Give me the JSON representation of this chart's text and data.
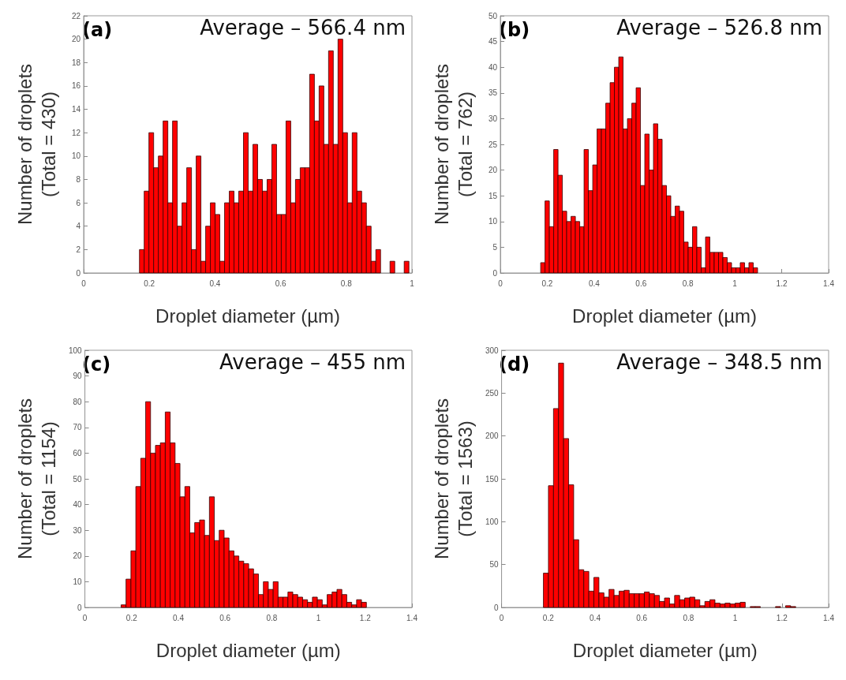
{
  "chart_data": [
    {
      "type": "histogram",
      "title": "(a)",
      "annotations": [
        "Average – 566.4 nm"
      ],
      "xlabel": "Droplet diameter (µm)",
      "ylabel": "Number of droplets\n(Total = 430)",
      "color": "#ff0000",
      "xlim": [
        0,
        1
      ],
      "xticks": [
        0,
        0.2,
        0.4,
        0.6,
        0.8,
        1
      ],
      "ylim": [
        0,
        22
      ],
      "yticks": [
        0,
        2,
        4,
        6,
        8,
        10,
        12,
        14,
        16,
        18,
        20,
        22
      ],
      "grid": false,
      "bins": [
        0.17,
        0.1844,
        0.1988,
        0.2132,
        0.2276,
        0.242,
        0.2564,
        0.2708,
        0.2852,
        0.2996,
        0.314,
        0.3284,
        0.3428,
        0.3572,
        0.3716,
        0.386,
        0.4004,
        0.4148,
        0.4292,
        0.4436,
        0.458,
        0.4724,
        0.4868,
        0.5012,
        0.5156,
        0.53,
        0.5444,
        0.5588,
        0.5732,
        0.5876,
        0.602,
        0.6164,
        0.6308,
        0.6452,
        0.6596,
        0.674,
        0.6884,
        0.7028,
        0.7172,
        0.7316,
        0.746,
        0.7604,
        0.7748,
        0.7892,
        0.8036,
        0.818,
        0.8324,
        0.8468,
        0.8612,
        0.8756,
        0.89,
        0.9044,
        0.9188,
        0.9332,
        0.9476,
        0.962,
        0.9764,
        0.9908
      ],
      "values": [
        2,
        7,
        12,
        9,
        10,
        13,
        6,
        13,
        4,
        6,
        9,
        2,
        10,
        1,
        4,
        6,
        5,
        1,
        6,
        7,
        6,
        7,
        12,
        7,
        11,
        8,
        7,
        8,
        11,
        5,
        5,
        13,
        6,
        8,
        9,
        9,
        17,
        13,
        16,
        11,
        19,
        11,
        20,
        12,
        6,
        12,
        7,
        6,
        4,
        1,
        2,
        0,
        0,
        1,
        0,
        0,
        1
      ]
    },
    {
      "type": "histogram",
      "title": "(b)",
      "annotations": [
        "Average – 526.8 nm"
      ],
      "xlabel": "Droplet diameter (µm)",
      "ylabel": "Number of droplets\n(Total = 762)",
      "color": "#ff0000",
      "xlim": [
        0,
        1.4
      ],
      "xticks": [
        0,
        0.2,
        0.4,
        0.6,
        0.8,
        1,
        1.2,
        1.4
      ],
      "ylim": [
        0,
        50
      ],
      "yticks": [
        0,
        5,
        10,
        15,
        20,
        25,
        30,
        35,
        40,
        45,
        50
      ],
      "grid": false,
      "bins": [
        0.172,
        0.1905,
        0.209,
        0.2275,
        0.246,
        0.2645,
        0.283,
        0.3015,
        0.32,
        0.3385,
        0.357,
        0.3755,
        0.394,
        0.4125,
        0.431,
        0.4495,
        0.468,
        0.4865,
        0.505,
        0.5235,
        0.542,
        0.5605,
        0.579,
        0.5975,
        0.616,
        0.6345,
        0.653,
        0.6715,
        0.69,
        0.7085,
        0.727,
        0.7455,
        0.764,
        0.7825,
        0.801,
        0.8195,
        0.838,
        0.8565,
        0.875,
        0.8935,
        0.912,
        0.9305,
        0.949,
        0.9675,
        0.986,
        1.0045,
        1.023,
        1.0415,
        1.06,
        1.0785,
        1.097
      ],
      "values": [
        2,
        14,
        9,
        24,
        19,
        12,
        10,
        11,
        10,
        9,
        24,
        16,
        21,
        28,
        28,
        33,
        37,
        40,
        42,
        28,
        30,
        33,
        36,
        17,
        27,
        20,
        29,
        26,
        17,
        15,
        11,
        13,
        12,
        6,
        5,
        9,
        5,
        1,
        7,
        4,
        4,
        4,
        3,
        2,
        1,
        1,
        2,
        1,
        2,
        1
      ]
    },
    {
      "type": "histogram",
      "title": "(c)",
      "annotations": [
        "Average – 455 nm"
      ],
      "xlabel": "Droplet diameter (µm)",
      "ylabel": "Number of droplets\n(Total = 1154)",
      "color": "#ff0000",
      "xlim": [
        0,
        1.4
      ],
      "xticks": [
        0,
        0.2,
        0.4,
        0.6,
        0.8,
        1,
        1.2,
        1.4
      ],
      "ylim": [
        0,
        100
      ],
      "yticks": [
        0,
        10,
        20,
        30,
        40,
        50,
        60,
        70,
        80,
        90,
        100
      ],
      "grid": false,
      "bins": [
        0.155,
        0.176,
        0.197,
        0.218,
        0.239,
        0.26,
        0.281,
        0.302,
        0.323,
        0.344,
        0.365,
        0.386,
        0.407,
        0.428,
        0.449,
        0.47,
        0.491,
        0.512,
        0.533,
        0.554,
        0.575,
        0.596,
        0.617,
        0.638,
        0.659,
        0.68,
        0.701,
        0.722,
        0.743,
        0.764,
        0.785,
        0.806,
        0.827,
        0.848,
        0.869,
        0.89,
        0.911,
        0.932,
        0.953,
        0.974,
        0.995,
        1.016,
        1.037,
        1.058,
        1.079,
        1.1,
        1.121,
        1.142,
        1.163,
        1.184,
        1.205
      ],
      "values": [
        1,
        11,
        22,
        47,
        58,
        80,
        60,
        63,
        64,
        76,
        64,
        56,
        43,
        47,
        29,
        33,
        34,
        28,
        43,
        26,
        30,
        27,
        22,
        20,
        18,
        17,
        15,
        13,
        5,
        10,
        7,
        10,
        4,
        4,
        6,
        5,
        4,
        3,
        2,
        4,
        3,
        1,
        5,
        6,
        7,
        5,
        2,
        1,
        3,
        2
      ]
    },
    {
      "type": "histogram",
      "title": "(d)",
      "annotations": [
        "Average – 348.5 nm"
      ],
      "xlabel": "Droplet diameter (µm)",
      "ylabel": "Number of droplets\n(Total = 1563)",
      "color": "#ff0000",
      "xlim": [
        0,
        1.4
      ],
      "xticks": [
        0,
        0.2,
        0.4,
        0.6,
        0.8,
        1,
        1.2,
        1.4
      ],
      "ylim": [
        0,
        300
      ],
      "yticks": [
        0,
        50,
        100,
        150,
        200,
        250,
        300
      ],
      "grid": false,
      "bins": [
        0.179,
        0.2006,
        0.2222,
        0.2438,
        0.2654,
        0.287,
        0.3086,
        0.3302,
        0.3518,
        0.3734,
        0.395,
        0.4166,
        0.4382,
        0.4598,
        0.4814,
        0.503,
        0.5246,
        0.5462,
        0.5678,
        0.5894,
        0.611,
        0.6326,
        0.6542,
        0.6758,
        0.6974,
        0.719,
        0.7406,
        0.7622,
        0.7838,
        0.8054,
        0.827,
        0.8486,
        0.8702,
        0.8918,
        0.9134,
        0.935,
        0.9566,
        0.9782,
        0.9998,
        1.0214,
        1.043,
        1.0646,
        1.0862,
        1.1078,
        1.1294,
        1.151,
        1.1726,
        1.1942,
        1.2158,
        1.2374,
        1.259
      ],
      "values": [
        40,
        142,
        232,
        285,
        197,
        143,
        79,
        44,
        42,
        19,
        35,
        17,
        12,
        21,
        14,
        19,
        20,
        16,
        16,
        16,
        18,
        16,
        14,
        7,
        11,
        4,
        14,
        9,
        11,
        12,
        9,
        2,
        7,
        9,
        5,
        4,
        5,
        4,
        5,
        6,
        0,
        1,
        1,
        0,
        0,
        0,
        1,
        0,
        2,
        1
      ]
    }
  ]
}
